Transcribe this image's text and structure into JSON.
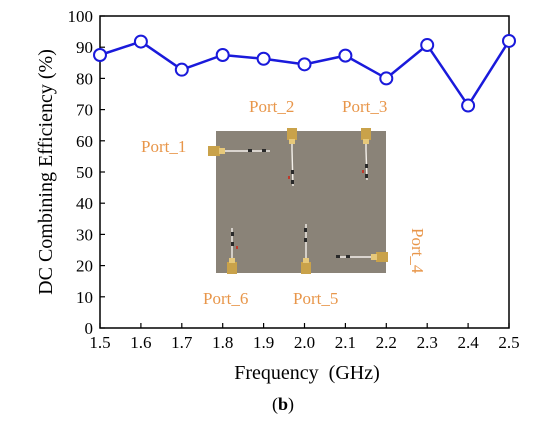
{
  "chart_data": {
    "type": "line",
    "title": "",
    "xlabel": "Frequency  (GHz)",
    "ylabel": "DC Combining Efficiency (%)",
    "xlim": [
      1.5,
      2.5
    ],
    "ylim": [
      0,
      100
    ],
    "x_ticks": [
      "1.5",
      "1.6",
      "1.7",
      "1.8",
      "1.9",
      "2.0",
      "2.1",
      "2.2",
      "2.3",
      "2.4",
      "2.5"
    ],
    "y_ticks": [
      "0",
      "10",
      "20",
      "30",
      "40",
      "50",
      "60",
      "70",
      "80",
      "90",
      "100"
    ],
    "x": [
      1.5,
      1.6,
      1.7,
      1.8,
      1.9,
      2.0,
      2.1,
      2.2,
      2.3,
      2.4,
      2.5
    ],
    "series": [
      {
        "values": [
          87.5,
          91.8,
          82.8,
          87.5,
          86.3,
          84.5,
          87.3,
          80.0,
          90.7,
          71.3,
          92.0
        ]
      }
    ],
    "grid": false,
    "line_color": "#1a1adb",
    "marker": "open-circle"
  },
  "inset": {
    "ports": [
      "Port_1",
      "Port_2",
      "Port_3",
      "Port_4",
      "Port_5",
      "Port_6"
    ],
    "board_color": "#8a8378",
    "label_color": "#e8964a"
  },
  "panel_label": {
    "open": "(",
    "letter": "b",
    "close": ")"
  }
}
